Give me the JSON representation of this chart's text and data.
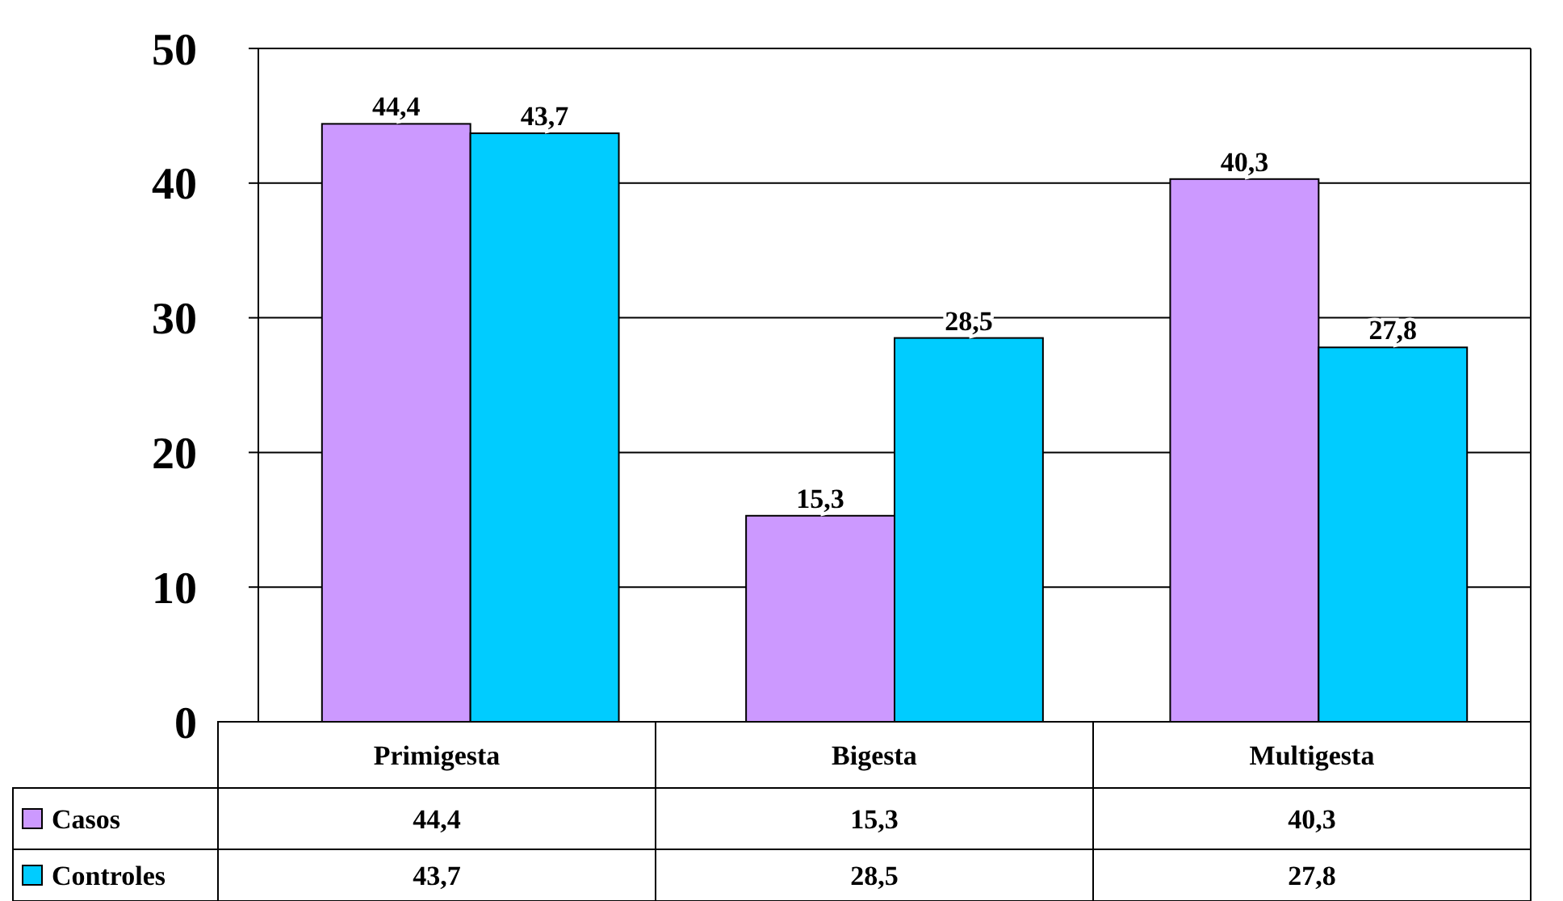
{
  "chart_data": {
    "type": "bar",
    "categories": [
      "Primigesta",
      "Bigesta",
      "Multigesta"
    ],
    "series": [
      {
        "name": "Casos",
        "color": "#cc99ff",
        "values": [
          44.4,
          15.3,
          40.3
        ],
        "value_labels": [
          "44,4",
          "15,3",
          "40,3"
        ]
      },
      {
        "name": "Controles",
        "color": "#00ccff",
        "values": [
          43.7,
          28.5,
          27.8
        ],
        "value_labels": [
          "43,7",
          "28,5",
          "27,8"
        ]
      }
    ],
    "ylim": [
      0,
      50
    ],
    "yticks": [
      0,
      10,
      20,
      30,
      40,
      50
    ],
    "grid": "y",
    "legend": "bottom"
  }
}
